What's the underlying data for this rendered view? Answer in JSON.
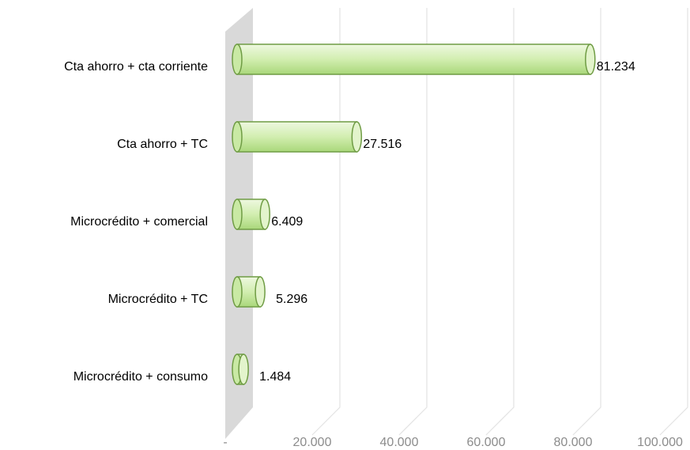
{
  "chart_data": {
    "type": "bar",
    "orientation": "horizontal",
    "categories": [
      "Cta ahorro + cta corriente",
      "Cta ahorro + TC",
      "Microcrédito + comercial",
      "Microcrédito + TC",
      "Microcrédito + consumo"
    ],
    "values": [
      81234,
      27516,
      6409,
      5296,
      1484
    ],
    "value_labels": [
      "81.234",
      "27.516",
      "6.409",
      "5.296",
      "1.484"
    ],
    "color": "#c4e79a",
    "xlim": [
      0,
      100000
    ],
    "xticks": [
      {
        "value": 0,
        "label": "-"
      },
      {
        "value": 20000,
        "label": "20.000"
      },
      {
        "value": 40000,
        "label": "40.000"
      },
      {
        "value": 60000,
        "label": "60.000"
      },
      {
        "value": 80000,
        "label": "80.000"
      },
      {
        "value": 100000,
        "label": "100.000"
      }
    ],
    "grid": true
  }
}
